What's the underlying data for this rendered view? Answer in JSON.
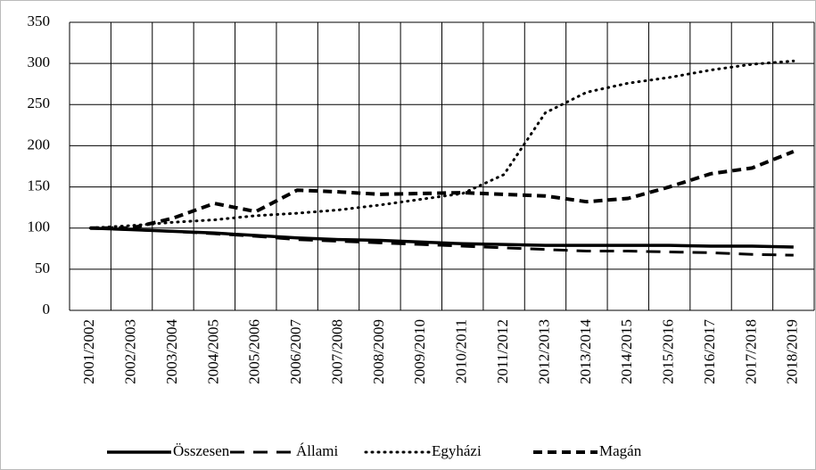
{
  "chart_data": {
    "type": "line",
    "categories": [
      "2001/2002",
      "2002/2003",
      "2003/2004",
      "2004/2005",
      "2005/2006",
      "2006/2007",
      "2007/2008",
      "2008/2009",
      "2009/2010",
      "2010/2011",
      "2011/2012",
      "2012/2013",
      "2013/2014",
      "2014/2015",
      "2015/2016",
      "2016/2017",
      "2017/2018",
      "2018/2019"
    ],
    "series": [
      {
        "name": "Összesen",
        "color": "#000000",
        "values": [
          100,
          98,
          96,
          94,
          91,
          88,
          86,
          85,
          83,
          81,
          80,
          79,
          79,
          79,
          79,
          78,
          78,
          77
        ]
      },
      {
        "name": "Állami",
        "color": "#000000",
        "values": [
          100,
          98,
          96,
          93,
          90,
          86,
          84,
          82,
          80,
          78,
          76,
          74,
          72,
          72,
          71,
          70,
          68,
          67
        ]
      },
      {
        "name": "Egyházi",
        "color": "#000000",
        "values": [
          100,
          103,
          107,
          110,
          115,
          118,
          122,
          128,
          135,
          142,
          165,
          240,
          265,
          276,
          283,
          292,
          299,
          303
        ]
      },
      {
        "name": "Magán",
        "color": "#000000",
        "values": [
          100,
          100,
          112,
          130,
          120,
          146,
          144,
          141,
          142,
          143,
          141,
          139,
          132,
          136,
          150,
          166,
          173,
          193
        ]
      }
    ],
    "ylim": [
      0,
      350
    ],
    "yticks": [
      0,
      50,
      100,
      150,
      200,
      250,
      300,
      350
    ],
    "grid": true,
    "legend": "bottom"
  }
}
